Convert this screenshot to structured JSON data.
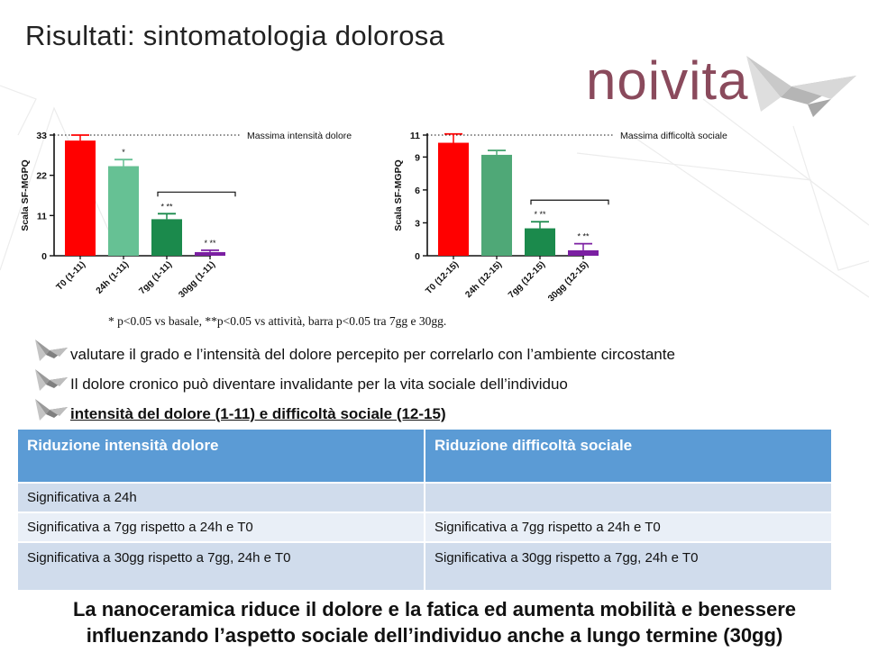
{
  "slide": {
    "title": "Risultati: sintomatologia dolorosa",
    "logo_text": "noivita",
    "footnote": "* p<0.05 vs basale, **p<0.05 vs attività, barra p<0.05 tra 7gg e 30gg."
  },
  "chart_data": [
    {
      "type": "bar",
      "ylabel": "Scala SF-MGPQ",
      "categories": [
        "T0 (1-11)",
        "24h (1-11)",
        "7gg (1-11)",
        "30gg (1-11)"
      ],
      "values": [
        31.5,
        24.5,
        10.0,
        1.0
      ],
      "errors": [
        1.5,
        1.8,
        1.5,
        0.5
      ],
      "colors": [
        "#ff0000",
        "#66c194",
        "#1b8a4c",
        "#7b1fa2"
      ],
      "significance": [
        "",
        "*",
        "* **",
        "* **"
      ],
      "ylim": [
        0,
        33
      ],
      "yticks": [
        0,
        11,
        22,
        33
      ],
      "reference_label": "Massima intensità dolore",
      "reference_value": 33,
      "bracket": "7gg-30gg"
    },
    {
      "type": "bar",
      "ylabel": "Scala SF-MGPQ",
      "categories": [
        "T0 (12-15)",
        "24h (12-15)",
        "7gg (12-15)",
        "30gg (12-15)"
      ],
      "values": [
        10.3,
        9.2,
        2.5,
        0.5
      ],
      "errors": [
        0.8,
        0.4,
        0.6,
        0.6
      ],
      "colors": [
        "#ff0000",
        "#4fa877",
        "#1b8a4c",
        "#7b1fa2"
      ],
      "significance": [
        "",
        "",
        "* **",
        "* **"
      ],
      "ylim": [
        0,
        11
      ],
      "yticks": [
        0,
        3,
        6,
        9,
        11
      ],
      "reference_label": "Massima difficoltà sociale",
      "reference_value": 11,
      "bracket": "7gg-30gg"
    }
  ],
  "bullets": [
    {
      "text": "valutare il grado e l’intensità del dolore percepito per correlarlo con l’ambiente circostante",
      "strong": false
    },
    {
      "text": "Il dolore cronico può diventare invalidante per la vita sociale dell’individuo",
      "strong": false
    },
    {
      "text": "intensità del dolore (1-11) e difficoltà sociale (12-15)",
      "strong": true
    }
  ],
  "table": {
    "headers": [
      "Riduzione intensità dolore",
      "Riduzione difficoltà sociale"
    ],
    "rows": [
      [
        "Significativa a 24h",
        ""
      ],
      [
        "Significativa a 7gg rispetto a 24h e T0",
        "Significativa a 7gg rispetto a 24h e T0"
      ],
      [
        "Significativa a 30gg rispetto a 7gg, 24h e T0",
        "Significativa a 30gg rispetto a 7gg, 24h e T0"
      ]
    ]
  },
  "conclusion": {
    "line1": "La nanoceramica riduce il dolore e la fatica ed aumenta mobilità e benessere",
    "line2": "influenzando l’aspetto sociale dell’individuo anche a lungo termine (30gg)"
  },
  "colors": {
    "logo": "#8a4a5c",
    "table_header": "#5b9bd5",
    "table_row_dark": "#d0dcec",
    "table_row_light": "#e9eff7"
  }
}
